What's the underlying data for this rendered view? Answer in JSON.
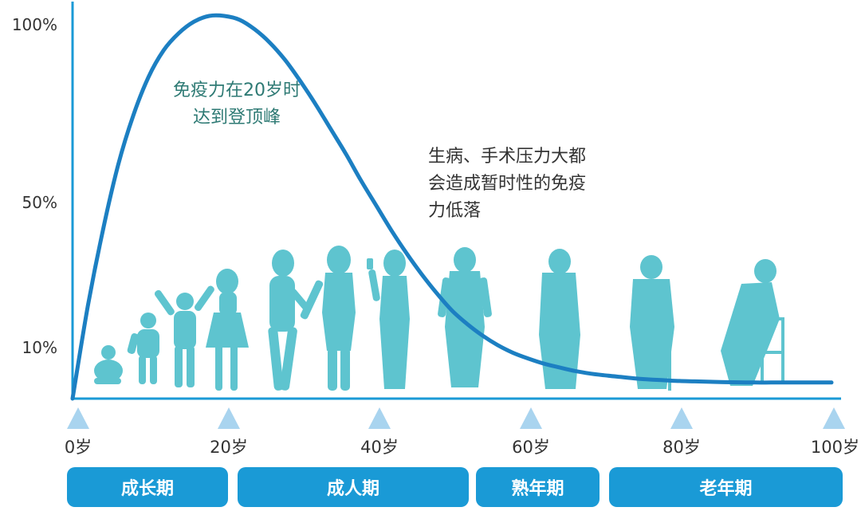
{
  "chart_data": {
    "type": "line",
    "title": "",
    "xlabel": "",
    "ylabel": "",
    "xlim": [
      0,
      100
    ],
    "ylim": [
      0,
      100
    ],
    "x_ticks": [
      {
        "value": 0,
        "label": "0岁"
      },
      {
        "value": 20,
        "label": "20岁"
      },
      {
        "value": 40,
        "label": "40岁"
      },
      {
        "value": 60,
        "label": "60岁"
      },
      {
        "value": 80,
        "label": "80岁"
      },
      {
        "value": 100,
        "label": "100岁"
      }
    ],
    "y_ticks": [
      {
        "value": 100,
        "label": "100%"
      },
      {
        "value": 50,
        "label": "50%"
      },
      {
        "value": 10,
        "label": "10%"
      }
    ],
    "series": [
      {
        "color": "#1c7fc2",
        "x": [
          0,
          2,
          4,
          6,
          8,
          10,
          12,
          14,
          16,
          18,
          20,
          22,
          24,
          26,
          28,
          30,
          32,
          34,
          36,
          38,
          40,
          42,
          44,
          46,
          48,
          50,
          52,
          54,
          56,
          58,
          60,
          62,
          64,
          66,
          68,
          70,
          72,
          74,
          76,
          78,
          80,
          82,
          84,
          86,
          88,
          90,
          92,
          94,
          96,
          98,
          100
        ],
        "y": [
          0,
          24,
          44,
          61,
          74,
          84,
          91,
          95.5,
          98.5,
          100,
          100,
          99,
          96.5,
          93,
          88.5,
          83,
          77,
          70.5,
          64,
          57,
          50.5,
          44,
          38,
          32.5,
          27.5,
          23,
          19.5,
          16.5,
          14,
          12,
          10.5,
          9.2,
          8.2,
          7.3,
          6.6,
          6.1,
          5.7,
          5.3,
          5.0,
          4.8,
          4.6,
          4.5,
          4.4,
          4.3,
          4.25,
          4.2,
          4.2,
          4.2,
          4.2,
          4.2,
          4.2
        ]
      }
    ],
    "annotations": [
      {
        "lines": [
          "免疫力在20岁时",
          "达到登顶峰"
        ]
      },
      {
        "lines": [
          "生病、手术压力大都",
          "会造成暂时性的免疫",
          "力低落"
        ]
      }
    ],
    "stages": [
      {
        "label": "成长期",
        "from": 0,
        "to": 20
      },
      {
        "label": "成人期",
        "from": 20,
        "to": 53
      },
      {
        "label": "熟年期",
        "from": 54,
        "to": 71
      },
      {
        "label": "老年期",
        "from": 72,
        "to": 100
      }
    ],
    "grid": false,
    "colors": {
      "curve": "#1c7fc2",
      "axis": "#1a9ad6",
      "figures": "#5ec4cf",
      "marker": "#a9d4ef",
      "stage": "#1a9ad6",
      "annotation": "#2e7a74"
    }
  }
}
